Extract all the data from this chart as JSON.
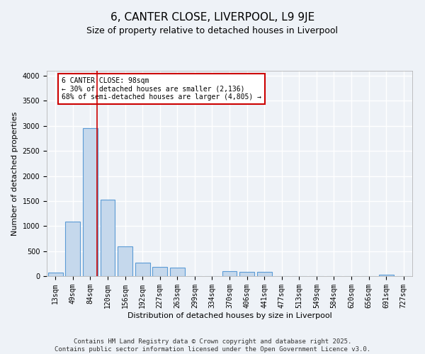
{
  "title": "6, CANTER CLOSE, LIVERPOOL, L9 9JE",
  "subtitle": "Size of property relative to detached houses in Liverpool",
  "xlabel": "Distribution of detached houses by size in Liverpool",
  "ylabel": "Number of detached properties",
  "categories": [
    "13sqm",
    "49sqm",
    "84sqm",
    "120sqm",
    "156sqm",
    "192sqm",
    "227sqm",
    "263sqm",
    "299sqm",
    "334sqm",
    "370sqm",
    "406sqm",
    "441sqm",
    "477sqm",
    "513sqm",
    "549sqm",
    "584sqm",
    "620sqm",
    "656sqm",
    "691sqm",
    "727sqm"
  ],
  "values": [
    75,
    1090,
    2960,
    1530,
    600,
    265,
    190,
    165,
    0,
    0,
    100,
    90,
    90,
    0,
    0,
    0,
    0,
    0,
    0,
    30,
    0
  ],
  "bar_color": "#c5d8ec",
  "bar_edge_color": "#5b9bd5",
  "vline_color": "#cc0000",
  "annotation_text": "6 CANTER CLOSE: 98sqm\n← 30% of detached houses are smaller (2,136)\n68% of semi-detached houses are larger (4,805) →",
  "annotation_box_color": "#ffffff",
  "annotation_box_edge_color": "#cc0000",
  "ylim": [
    0,
    4100
  ],
  "yticks": [
    0,
    500,
    1000,
    1500,
    2000,
    2500,
    3000,
    3500,
    4000
  ],
  "footer": "Contains HM Land Registry data © Crown copyright and database right 2025.\nContains public sector information licensed under the Open Government Licence v3.0.",
  "bg_color": "#eef2f7",
  "grid_color": "#ffffff",
  "title_fontsize": 11,
  "subtitle_fontsize": 9,
  "axis_label_fontsize": 8,
  "tick_fontsize": 7,
  "footer_fontsize": 6.5
}
